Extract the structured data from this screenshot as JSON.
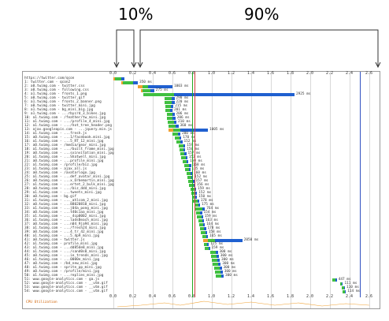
{
  "annotations": {
    "left_pct": "10%",
    "right_pct": "90%"
  },
  "colors": {
    "dns": "#f0a030",
    "connect": "#e07020",
    "ttfb": "#40c040",
    "download": "#2060d0",
    "start_render": "#22aa22",
    "dom_loaded": "#d04040",
    "onload": "#3050c0"
  },
  "axis_ticks": [
    "0.0",
    "0.2",
    "0.4",
    "0.6",
    "0.8",
    "1.0",
    "1.2",
    "1.4",
    "1.6",
    "1.8",
    "2.0",
    "2.2",
    "2.4",
    "2.6"
  ],
  "requests": [
    {
      "label": "https://twitter.com/qcon",
      "start": 0.0,
      "dur": 0.1,
      "val": ""
    },
    {
      "label": "1: twitter.com - qcon2",
      "start": 0.08,
      "dur": 0.15,
      "val": "350 ms"
    },
    {
      "label": "2: a0.twimg.com - twitter.css",
      "start": 0.25,
      "dur": 0.35,
      "val": "1003 ms"
    },
    {
      "label": "3: a0.twimg.com - following.css",
      "start": 0.28,
      "dur": 0.12,
      "val": "275 ms"
    },
    {
      "label": "4: a1.twimg.com - fronts_1.png",
      "start": 0.3,
      "dur": 1.75,
      "val": "2925 ms"
    },
    {
      "label": "5: a0.twimg.com - twitter.gif",
      "start": 0.52,
      "dur": 0.1,
      "val": "290 ms"
    },
    {
      "label": "6: a1.twimg.com - fronts_2_banner.png",
      "start": 0.52,
      "dur": 0.1,
      "val": "220 ms"
    },
    {
      "label": "7: a0.twimg.com - twitter_mini.jpg",
      "start": 0.53,
      "dur": 0.08,
      "val": "215 ms"
    },
    {
      "label": "8: a1.twimg.com - bg_mini_big.jpg",
      "start": 0.53,
      "dur": 0.07,
      "val": "201 ms"
    },
    {
      "label": "9: a1.twimg.com - ...rbycrd_3_bikes.jpg",
      "start": 0.54,
      "dur": 0.08,
      "val": "206 ms"
    },
    {
      "label": "10: a1.twimg.com - /feather/tw_mini.jpg",
      "start": 0.54,
      "dur": 0.09,
      "val": "206 ms"
    },
    {
      "label": "11: a1.twimg.com - .../profile_4_mini.jpg",
      "start": 0.55,
      "dur": 0.09,
      "val": "210 ms"
    },
    {
      "label": "12: a1.twimg.com - .../hot_tree_header.png",
      "start": 0.56,
      "dur": 0.1,
      "val": "360 ms"
    },
    {
      "label": "13: ajax.googleapis.com - ...jquery.min.js",
      "start": 0.56,
      "dur": 0.4,
      "val": "1005 ms"
    },
    {
      "label": "14: a1.twimg.com - ...fresh.js",
      "start": 0.6,
      "dur": 0.08,
      "val": "200 ms"
    },
    {
      "label": "15: a0.twimg.com - ...1/facebook.mini.jpg",
      "start": 0.62,
      "dur": 0.07,
      "val": "170 ms"
    },
    {
      "label": "16: a1.twimg.com - ...5_RT_12_mini.jpg",
      "start": 0.64,
      "dur": 0.06,
      "val": "152 ms"
    },
    {
      "label": "17: a0.twimg.com - /media/gear_mini.jpg",
      "start": 0.66,
      "dur": 0.07,
      "val": "159 ms"
    },
    {
      "label": "18: a1.twimg.com - .../built_frame_mini.jpg",
      "start": 0.67,
      "dur": 0.06,
      "val": "150 ms"
    },
    {
      "label": "19: a0.twimg.com - ...sxinvitation_mini.jpg",
      "start": 0.68,
      "dur": 0.06,
      "val": "157 ms"
    },
    {
      "label": "20: a1.twimg.com - ...Shatwell_mini.jpg",
      "start": 0.69,
      "dur": 0.06,
      "val": "152 ms"
    },
    {
      "label": "21: a0.twimg.com - ...profile_mini.jpg",
      "start": 0.7,
      "dur": 0.06,
      "val": "150 ms"
    },
    {
      "label": "22: a1.twimg.com - /profile/biz.jpg",
      "start": 0.72,
      "dur": 0.07,
      "val": "168 ms"
    },
    {
      "label": "23: a1.twimg.com - ajax_all.js",
      "start": 0.73,
      "dur": 0.05,
      "val": "135 ms"
    },
    {
      "label": "24: a0.twimg.com - /avatarlogo.jpg",
      "start": 0.74,
      "dur": 0.06,
      "val": "160 ms"
    },
    {
      "label": "25: a1.twimg.com - ...def_avatar_mini.jpg",
      "start": 0.75,
      "dur": 0.06,
      "val": "152 ms"
    },
    {
      "label": "26: a0.twimg.com - ...x_Orbemartin_mini.jpg",
      "start": 0.76,
      "dur": 0.06,
      "val": "157 ms"
    },
    {
      "label": "27: a1.twimg.com - ...ertet_2_bulk_mini.jpg",
      "start": 0.77,
      "dur": 0.06,
      "val": "156 ms"
    },
    {
      "label": "28: a0.twimg.com - .../biz_ddd_mini.jpg",
      "start": 0.78,
      "dur": 0.06,
      "val": "159 ms"
    },
    {
      "label": "29: a1.twimg.com - ...tweets_mini.jpg",
      "start": 0.79,
      "dur": 0.06,
      "val": "152 ms"
    },
    {
      "label": "30: a0.twimg.com - bg.gif",
      "start": 0.8,
      "dur": 0.05,
      "val": "150 ms"
    },
    {
      "label": "31: a1.twimg.com - ..._ahlcom_2_mini.jpg",
      "start": 0.81,
      "dur": 0.06,
      "val": "178 ms"
    },
    {
      "label": "32: a0.twimg.com - ...88020810_mini.jpg",
      "start": 0.82,
      "dur": 0.06,
      "val": "175 ms"
    },
    {
      "label": "33: a1.twimg.com - ...j04a_pong_mini.jpg",
      "start": 0.83,
      "dur": 0.1,
      "val": "764 ms"
    },
    {
      "label": "34: a0.twimg.com - ...t40c1aa_mini.jpg",
      "start": 0.84,
      "dur": 0.06,
      "val": "154 ms"
    },
    {
      "label": "35: a1.twimg.com - ..._4cp0002_mini.jpg",
      "start": 0.85,
      "dur": 0.06,
      "val": "159 ms"
    },
    {
      "label": "36: a1.twimg.com - ...ladsBeach_mini.jpg",
      "start": 0.86,
      "dur": 0.06,
      "val": "163 ms"
    },
    {
      "label": "37: a0.twimg.com - ...n04_9ja94_mini.jpg",
      "start": 0.87,
      "dur": 0.06,
      "val": "164 ms"
    },
    {
      "label": "38: a1.twimg.com - .../fresh24_mini.jpg",
      "start": 0.88,
      "dur": 0.06,
      "val": "178 ms"
    },
    {
      "label": "39: a0.twimg.com - ...4_tr_42_mini.jpg",
      "start": 0.89,
      "dur": 0.06,
      "val": "158 ms"
    },
    {
      "label": "40: a1.twimg.com - ...5_4p9_mini.jpg",
      "start": 0.9,
      "dur": 0.06,
      "val": "165 ms"
    },
    {
      "label": "41: a0.twimg.com - twitter.js",
      "start": 0.91,
      "dur": 0.4,
      "val": "2050 ms"
    },
    {
      "label": "42: a1.twimg.com - profile_mini.jpg",
      "start": 0.92,
      "dur": 0.05,
      "val": "125 ms"
    },
    {
      "label": "43: a1.twimg.com - ...dd85de8_mini.jpg",
      "start": 0.93,
      "dur": 0.05,
      "val": "159 ms"
    },
    {
      "label": "44: a1.twimg.com - .../sand0s0_mini.jpg",
      "start": 0.98,
      "dur": 0.08,
      "val": "300 ms"
    },
    {
      "label": "45: a0.twimg.com - ...ie_trends_mini.jpg",
      "start": 0.99,
      "dur": 0.08,
      "val": "300 ms"
    },
    {
      "label": "46: a1.twimg.com - ...0000e_mini.jpg",
      "start": 1.0,
      "dur": 0.08,
      "val": "300 ms"
    },
    {
      "label": "47: a0.twimg.com - /bd_new_mini.jpg",
      "start": 1.01,
      "dur": 0.08,
      "val": "300 ms"
    },
    {
      "label": "48: a1.twimg.com - sprite_pp_mini.jpg",
      "start": 1.02,
      "dur": 0.08,
      "val": "300 ms"
    },
    {
      "label": "49: a0.twimg.com - /profile/mini.jpg",
      "start": 1.03,
      "dur": 0.08,
      "val": "300 ms"
    },
    {
      "label": "50: a1.twimg.com - ...replies_mini.jpg",
      "start": 1.04,
      "dur": 0.08,
      "val": "300 ms"
    },
    {
      "label": "51: www.google-analytics.com - ga.js",
      "start": 2.22,
      "dur": 0.05,
      "val": "447 ms"
    },
    {
      "label": "52: www.google-analytics.com - __utm.gif",
      "start": 2.3,
      "dur": 0.03,
      "val": "111 ms"
    },
    {
      "label": "53: www.google-analytics.com - __utm.gif",
      "start": 2.32,
      "dur": 0.03,
      "val": "110 ms"
    },
    {
      "label": "54: www.google-analytics.com - __utm.gif",
      "start": 2.33,
      "dur": 0.02,
      "val": "114 ms"
    }
  ],
  "footer": {
    "cpu_label": "CPU Utilization"
  },
  "markers": {
    "start_render_s": 0.8,
    "dom_loaded_s": 0.82,
    "onload_s": 2.5
  }
}
